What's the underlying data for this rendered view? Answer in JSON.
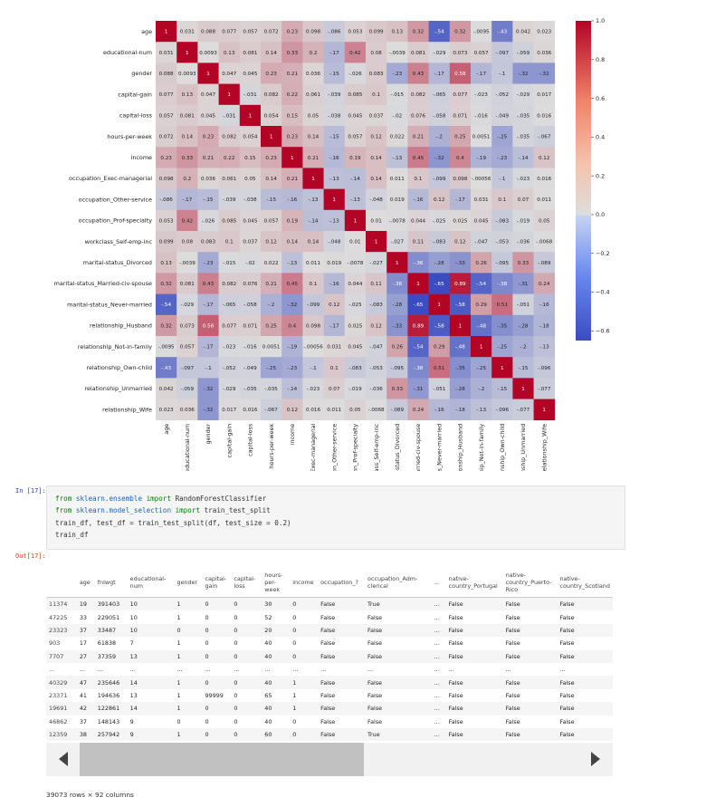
{
  "chart_data": {
    "type": "heatmap",
    "labels": [
      "age",
      "educational-num",
      "gender",
      "capital-gain",
      "capital-loss",
      "hours-per-week",
      "income",
      "occupation_Exec-managerial",
      "occupation_Other-service",
      "occupation_Prof-specialty",
      "workclass_Self-emp-inc",
      "marital-status_Divorced",
      "marital-status_Married-civ-spouse",
      "marital-status_Never-married",
      "relationship_Husband",
      "relationship_Not-in-family",
      "relationship_Own-child",
      "relationship_Unmarried",
      "relationship_Wife"
    ],
    "values": [
      [
        1,
        0.031,
        0.088,
        0.077,
        0.057,
        0.072,
        0.23,
        0.098,
        -0.086,
        0.053,
        0.099,
        0.13,
        0.32,
        -0.54,
        0.32,
        -0.0095,
        -0.43,
        0.042,
        0.023
      ],
      [
        0.031,
        1,
        0.0093,
        0.13,
        0.081,
        0.14,
        0.33,
        0.2,
        -0.17,
        0.42,
        0.08,
        -0.0039,
        0.081,
        -0.029,
        0.073,
        0.057,
        -0.097,
        -0.059,
        0.036
      ],
      [
        0.088,
        0.0093,
        1,
        0.047,
        0.045,
        0.23,
        0.21,
        0.036,
        -0.15,
        -0.026,
        0.083,
        -0.23,
        0.43,
        -0.17,
        0.58,
        -0.17,
        -0.1,
        -0.32,
        -0.32
      ],
      [
        0.077,
        0.13,
        0.047,
        1,
        -0.031,
        0.082,
        0.22,
        0.061,
        -0.039,
        0.085,
        0.1,
        -0.015,
        0.082,
        -0.065,
        0.077,
        -0.023,
        -0.052,
        -0.029,
        0.017
      ],
      [
        0.057,
        0.081,
        0.045,
        -0.031,
        1,
        0.054,
        0.15,
        0.05,
        -0.038,
        0.045,
        0.037,
        -0.02,
        0.076,
        -0.058,
        0.071,
        -0.016,
        -0.049,
        -0.035,
        0.016
      ],
      [
        0.072,
        0.14,
        0.23,
        0.082,
        0.054,
        1,
        0.23,
        0.14,
        -0.15,
        0.057,
        0.12,
        0.022,
        0.21,
        -0.2,
        0.25,
        0.0051,
        -0.25,
        -0.035,
        -0.067
      ],
      [
        0.23,
        0.33,
        0.21,
        0.22,
        0.15,
        0.23,
        1,
        0.21,
        -0.16,
        0.19,
        0.14,
        -0.13,
        0.45,
        -0.32,
        0.4,
        -0.19,
        -0.23,
        -0.14,
        0.12
      ],
      [
        0.098,
        0.2,
        0.036,
        0.061,
        0.05,
        0.14,
        0.21,
        1,
        -0.13,
        -0.14,
        0.14,
        0.011,
        0.1,
        -0.099,
        0.098,
        -0.00056,
        -0.1,
        -0.023,
        0.016
      ],
      [
        -0.086,
        -0.17,
        -0.15,
        -0.039,
        -0.038,
        -0.15,
        -0.16,
        -0.13,
        1,
        -0.13,
        -0.048,
        0.019,
        -0.16,
        0.12,
        -0.17,
        0.031,
        0.1,
        0.07,
        0.011
      ],
      [
        0.053,
        0.42,
        -0.026,
        0.085,
        0.045,
        0.057,
        0.19,
        -0.14,
        -0.13,
        1,
        0.01,
        -0.0078,
        0.044,
        -0.025,
        0.025,
        0.045,
        -0.083,
        -0.019,
        0.05
      ],
      [
        0.099,
        0.08,
        0.083,
        0.1,
        0.037,
        0.12,
        0.14,
        0.14,
        -0.048,
        0.01,
        1,
        -0.027,
        0.11,
        -0.083,
        0.12,
        -0.047,
        -0.053,
        -0.036,
        -0.0068
      ],
      [
        0.13,
        -0.0039,
        -0.23,
        -0.015,
        -0.02,
        0.022,
        -0.13,
        0.011,
        0.019,
        -0.0078,
        -0.027,
        1,
        -0.36,
        -0.28,
        -0.33,
        0.26,
        -0.095,
        0.33,
        -0.089
      ],
      [
        0.32,
        0.081,
        0.43,
        0.082,
        0.076,
        0.21,
        0.45,
        0.1,
        -0.16,
        0.044,
        0.11,
        -0.36,
        1,
        -0.65,
        0.89,
        -0.54,
        -0.38,
        -0.31,
        0.24
      ],
      [
        -0.54,
        -0.029,
        -0.17,
        -0.065,
        -0.058,
        -0.2,
        -0.32,
        -0.099,
        0.12,
        -0.025,
        -0.083,
        -0.28,
        -0.65,
        1,
        -0.58,
        0.29,
        0.51,
        -0.051,
        -0.16
      ],
      [
        0.32,
        0.073,
        0.58,
        0.077,
        0.071,
        0.25,
        0.4,
        0.098,
        -0.17,
        0.025,
        0.12,
        -0.33,
        0.89,
        -0.58,
        1,
        -0.48,
        -0.35,
        -0.28,
        -0.18
      ],
      [
        -0.0095,
        0.057,
        -0.17,
        -0.023,
        -0.016,
        0.0051,
        -0.19,
        -0.00056,
        0.031,
        0.045,
        -0.047,
        0.26,
        -0.54,
        0.29,
        -0.48,
        1,
        -0.25,
        -0.2,
        -0.13
      ],
      [
        -0.43,
        -0.097,
        -0.1,
        -0.052,
        -0.049,
        -0.25,
        -0.23,
        -0.1,
        0.1,
        -0.083,
        -0.053,
        -0.095,
        -0.38,
        0.51,
        -0.35,
        -0.25,
        1,
        -0.15,
        -0.096
      ],
      [
        0.042,
        -0.059,
        -0.32,
        -0.029,
        -0.035,
        -0.035,
        -0.14,
        -0.023,
        0.07,
        -0.019,
        -0.036,
        0.33,
        -0.31,
        -0.051,
        -0.28,
        -0.2,
        -0.15,
        1,
        -0.077
      ],
      [
        0.023,
        0.036,
        -0.32,
        0.017,
        0.016,
        -0.067,
        0.12,
        0.016,
        0.011,
        0.05,
        -0.0068,
        -0.089,
        0.24,
        -0.16,
        -0.18,
        -0.13,
        -0.096,
        -0.077,
        1
      ]
    ],
    "colorbar_ticks": [
      "1.0",
      "0.8",
      "0.6",
      "0.4",
      "0.2",
      "0.0",
      "−0.2",
      "−0.4",
      "−0.6"
    ],
    "colorbar_range": [
      -0.65,
      1.0
    ],
    "colormap": "coolwarm",
    "colors": {
      "low": "#3b4cc0",
      "mid": "#dddddd",
      "high": "#b40426"
    }
  },
  "cells": {
    "code": {
      "prompt": "In [17]:",
      "lines": [
        [
          {
            "t": "from",
            "c": "kw"
          },
          {
            "t": " sklearn.ensemble ",
            "c": "mod"
          },
          {
            "t": "import",
            "c": "kw"
          },
          {
            "t": " RandomForestClassifier",
            "c": ""
          }
        ],
        [
          {
            "t": "from",
            "c": "kw"
          },
          {
            "t": " sklearn.model_selection ",
            "c": "mod"
          },
          {
            "t": "import",
            "c": "kw"
          },
          {
            "t": " train_test_split",
            "c": ""
          }
        ],
        [
          {
            "t": "train_df, test_df = train_test_split(df, test_size = 0.2)",
            "c": ""
          }
        ],
        [
          {
            "t": "train_df",
            "c": ""
          }
        ]
      ]
    },
    "output": {
      "prompt": "Out[17]:",
      "table": {
        "columns": [
          "",
          "age",
          "fnlwgt",
          "educational-num",
          "gender",
          "capital-gain",
          "capital-loss",
          "hours-per-week",
          "income",
          "occupation_?",
          "occupation_Adm-clerical",
          "...",
          "native-country_Portugal",
          "native-country_Puerto-Rico",
          "native-country_Scotland"
        ],
        "rows": [
          [
            "11374",
            "19",
            "391403",
            "10",
            "1",
            "0",
            "0",
            "30",
            "0",
            "False",
            "True",
            "...",
            "False",
            "False",
            "False"
          ],
          [
            "47225",
            "33",
            "229051",
            "10",
            "1",
            "0",
            "0",
            "52",
            "0",
            "False",
            "False",
            "...",
            "False",
            "False",
            "False"
          ],
          [
            "23323",
            "37",
            "33487",
            "10",
            "0",
            "0",
            "0",
            "20",
            "0",
            "False",
            "False",
            "...",
            "False",
            "False",
            "False"
          ],
          [
            "903",
            "17",
            "61838",
            "7",
            "1",
            "0",
            "0",
            "40",
            "0",
            "False",
            "False",
            "...",
            "False",
            "False",
            "False"
          ],
          [
            "7707",
            "27",
            "37359",
            "13",
            "1",
            "0",
            "0",
            "40",
            "0",
            "False",
            "False",
            "...",
            "False",
            "False",
            "False"
          ],
          [
            "...",
            "...",
            "...",
            "...",
            "...",
            "...",
            "...",
            "...",
            "...",
            "...",
            "...",
            "...",
            "...",
            "...",
            "..."
          ],
          [
            "40329",
            "47",
            "235646",
            "14",
            "1",
            "0",
            "0",
            "40",
            "1",
            "False",
            "False",
            "...",
            "False",
            "False",
            "False"
          ],
          [
            "23371",
            "41",
            "194636",
            "13",
            "1",
            "99999",
            "0",
            "65",
            "1",
            "False",
            "False",
            "...",
            "False",
            "False",
            "False"
          ],
          [
            "19691",
            "42",
            "122861",
            "14",
            "1",
            "0",
            "0",
            "40",
            "1",
            "False",
            "False",
            "...",
            "False",
            "False",
            "False"
          ],
          [
            "46862",
            "37",
            "148143",
            "9",
            "0",
            "0",
            "0",
            "40",
            "0",
            "False",
            "False",
            "...",
            "False",
            "False",
            "False"
          ],
          [
            "12359",
            "38",
            "257942",
            "9",
            "1",
            "0",
            "0",
            "60",
            "0",
            "False",
            "True",
            "...",
            "False",
            "False",
            "False"
          ]
        ],
        "shape_text": "39073 rows × 92 columns"
      }
    }
  }
}
